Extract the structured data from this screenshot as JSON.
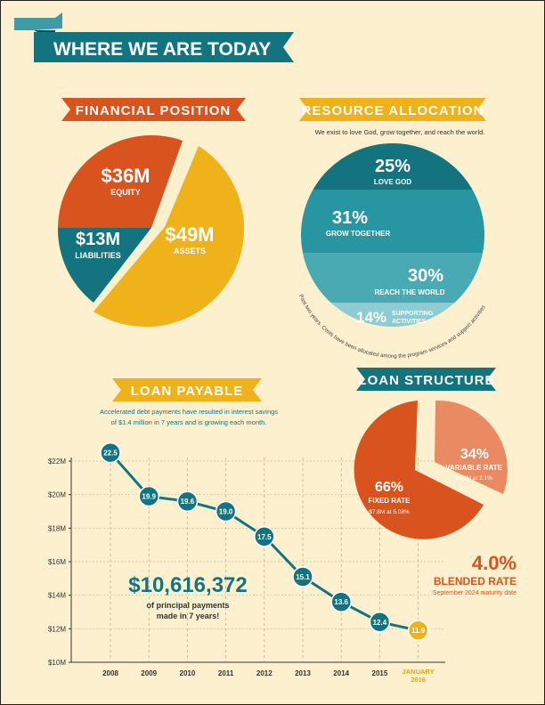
{
  "colors": {
    "background": "#FDF0CE",
    "teal": "#137480",
    "teal_mid": "#2795A2",
    "teal_light": "#4AAAB4",
    "teal_pale": "#8FCBD2",
    "orange": "#D9531E",
    "orange_light": "#EA8A62",
    "yellow": "#F0B21A",
    "white": "#FFFFFF",
    "gold_text": "#E6A712"
  },
  "header": {
    "title": "WHERE WE ARE TODAY"
  },
  "financial_position": {
    "heading": "FINANCIAL POSITION",
    "chart_data": {
      "type": "pie",
      "slices": [
        {
          "label": "EQUITY",
          "value_label": "$36M",
          "value": 36,
          "color": "#D9531E"
        },
        {
          "label": "LIABILITIES",
          "value_label": "$13M",
          "value": 13,
          "color": "#137480"
        },
        {
          "label": "ASSETS",
          "value_label": "$49M",
          "value": 49,
          "color": "#F0B21A"
        }
      ]
    }
  },
  "resource_allocation": {
    "heading": "RESOURCE ALLOCATION",
    "subtitle": "We exist to love God, grow together, and reach the world.",
    "note": "Past two years. Costs have been allocated among the program services and support activities",
    "chart_data": {
      "type": "stacked-circle",
      "segments": [
        {
          "value": 25,
          "pct_label": "25%",
          "label": "LOVE GOD",
          "color": "#137480"
        },
        {
          "value": 31,
          "pct_label": "31%",
          "label": "GROW TOGETHER",
          "color": "#2795A2"
        },
        {
          "value": 30,
          "pct_label": "30%",
          "label": "REACH THE WORLD",
          "color": "#4AAAB4"
        },
        {
          "value": 14,
          "pct_label": "14%",
          "label_line1": "SUPPORTING",
          "label_line2": "ACTIVITIES",
          "color": "#8FCBD2"
        }
      ]
    }
  },
  "loan_payable": {
    "heading": "LOAN PAYABLE",
    "subtitle_line1": "Accelerated debt payments have resulted in interest savings",
    "subtitle_line2": "of $1.4 million in 7 years and is growing each month.",
    "highlight_value": "$10,616,372",
    "highlight_line1": "of principal payments",
    "highlight_line2": "made in 7 years!",
    "chart_data": {
      "type": "line",
      "y_unit": "$M",
      "ylim": [
        10,
        22
      ],
      "yticks": [
        10,
        12,
        14,
        16,
        18,
        20,
        22
      ],
      "ytick_labels": [
        "$10M",
        "$12M",
        "$14M",
        "$16M",
        "$18M",
        "$20M",
        "$22M"
      ],
      "categories": [
        "2008",
        "2009",
        "2010",
        "2011",
        "2012",
        "2013",
        "2014",
        "2015",
        "JANUARY 2016"
      ],
      "xtick_labels": [
        "2008",
        "2009",
        "2010",
        "2011",
        "2012",
        "2013",
        "2014",
        "2015"
      ],
      "last_label_line1": "JANUARY",
      "last_label_line2": "2016",
      "x_positions": [
        0,
        1,
        2,
        3,
        4,
        5,
        6,
        7,
        8
      ],
      "values": [
        22.5,
        19.9,
        19.6,
        19.0,
        17.5,
        15.1,
        13.6,
        12.4,
        11.9
      ],
      "value_labels": [
        "22.5",
        "19.9",
        "19.6",
        "19.0",
        "17.5",
        "15.1",
        "13.6",
        "12.4",
        "11.9"
      ]
    }
  },
  "loan_structure": {
    "heading": "LOAN STRUCTURE",
    "blended_value": "4.0%",
    "blended_label": "BLENDED RATE",
    "blended_note": "September 2024 maturity date",
    "chart_data": {
      "type": "pie",
      "slices": [
        {
          "pct_label": "66%",
          "label": "FIXED RATE",
          "detail": "$7.8M at 5.08%",
          "value": 66,
          "color": "#D9531E"
        },
        {
          "pct_label": "34%",
          "label": "VARIABLE RATE",
          "detail": "$4.1M at 2.1%",
          "value": 34,
          "color": "#EA8A62"
        }
      ]
    }
  }
}
